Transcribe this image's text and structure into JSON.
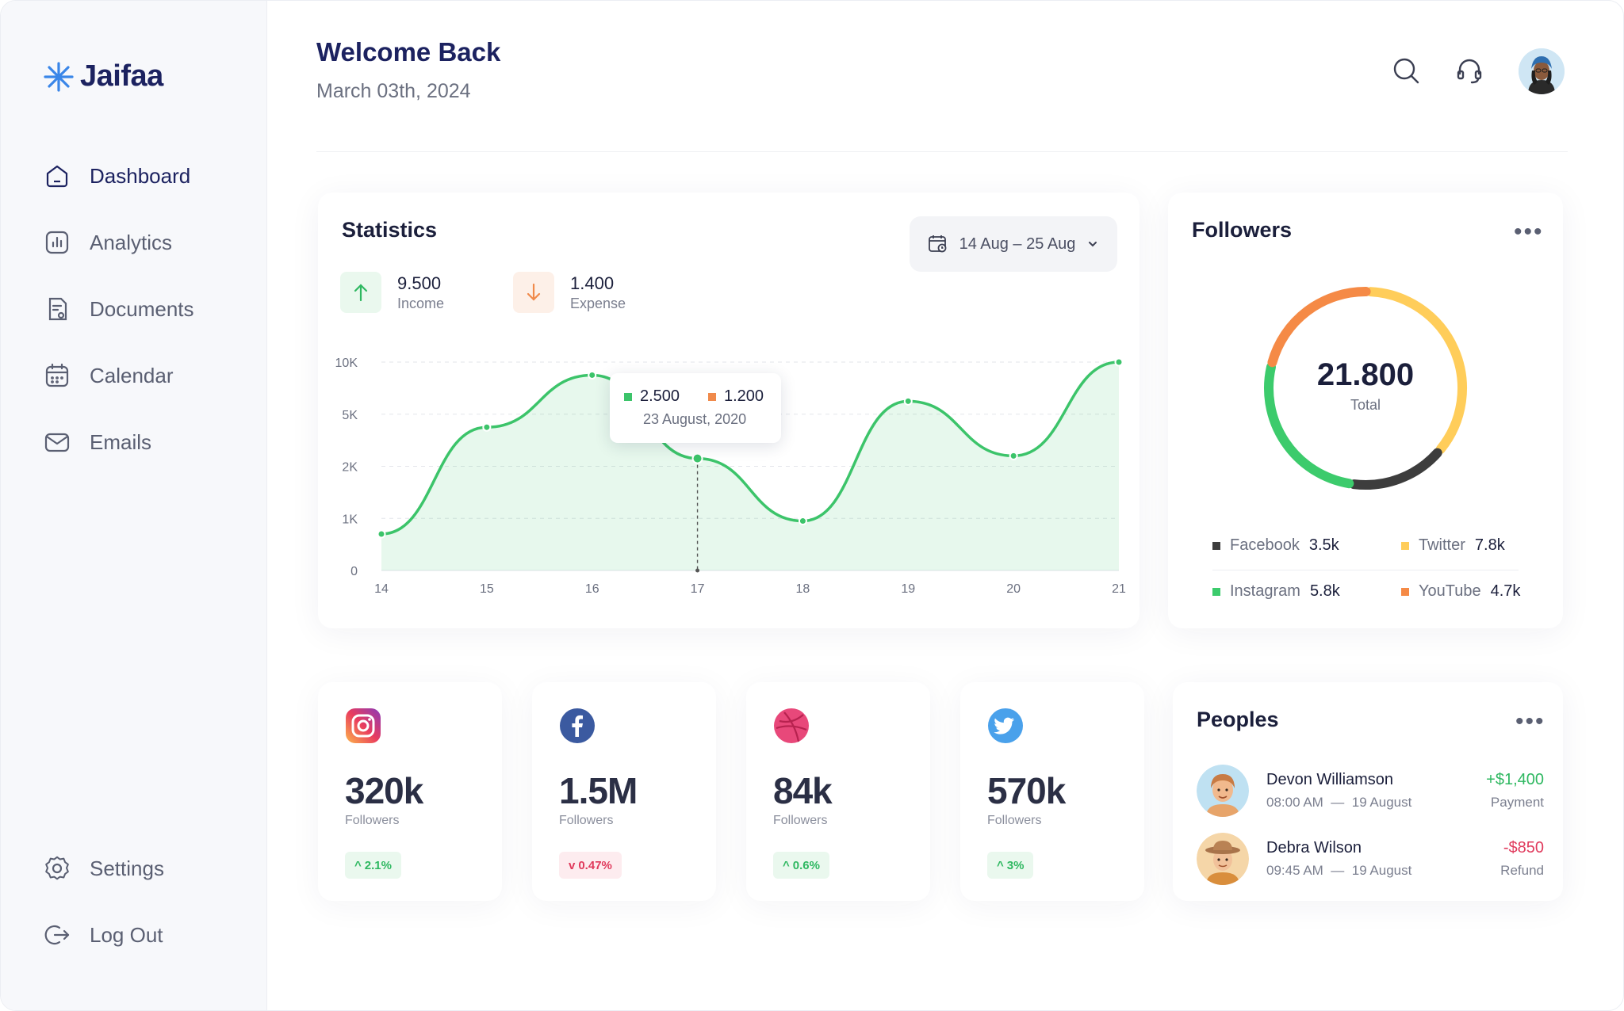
{
  "brand": {
    "name": "Jaifaa",
    "color": "#1c2260",
    "logo_icon": "asterisk-snowflake-icon"
  },
  "sidebar": {
    "items": [
      {
        "label": "Dashboard",
        "icon": "home-icon",
        "active": true
      },
      {
        "label": "Analytics",
        "icon": "bar-chart-icon"
      },
      {
        "label": "Documents",
        "icon": "document-icon"
      },
      {
        "label": "Calendar",
        "icon": "calendar-icon"
      },
      {
        "label": "Emails",
        "icon": "mail-icon"
      }
    ],
    "bottom": [
      {
        "label": "Settings",
        "icon": "gear-icon"
      },
      {
        "label": "Log Out",
        "icon": "logout-icon"
      }
    ]
  },
  "header": {
    "title": "Welcome Back",
    "date": "March 03th, 2024",
    "icons": [
      "search-icon",
      "headset-icon",
      "avatar"
    ]
  },
  "statistics": {
    "title": "Statistics",
    "date_range": "14 Aug – 25 Aug",
    "income": {
      "value": "9.500",
      "label": "Income",
      "color": "#2fb861"
    },
    "expense": {
      "value": "1.400",
      "label": "Expense",
      "color": "#f08a4b"
    },
    "tooltip": {
      "income": "2.500",
      "expense": "1.200",
      "date": "23 August, 2020"
    }
  },
  "chart_data": {
    "type": "area",
    "x": [
      "14",
      "15",
      "16",
      "17",
      "18",
      "19",
      "20",
      "21"
    ],
    "y_ticks": [
      "0",
      "1K",
      "2K",
      "5K",
      "10K"
    ],
    "series": [
      {
        "name": "Income",
        "values_level": [
          0.7,
          2.75,
          3.75,
          2.15,
          0.95,
          3.25,
          2.2,
          4.0
        ],
        "color": "#3cc46a"
      }
    ],
    "highlight_x": "17",
    "ylim_level": [
      0,
      4
    ],
    "grid": true
  },
  "followers": {
    "title": "Followers",
    "total": "21.800",
    "total_label": "Total",
    "segments": [
      {
        "name": "Facebook",
        "value": "3.5k",
        "num": 3.5,
        "color": "#3d3d3d"
      },
      {
        "name": "Twitter",
        "value": "7.8k",
        "num": 7.8,
        "color": "#ffcd5a"
      },
      {
        "name": "Instagram",
        "value": "5.8k",
        "num": 5.8,
        "color": "#3ccb6c"
      },
      {
        "name": "YouTube",
        "value": "4.7k",
        "num": 4.7,
        "color": "#f58a46"
      }
    ]
  },
  "social": [
    {
      "icon": "instagram-icon",
      "value": "320k",
      "label": "Followers",
      "change": "2.1%",
      "trend": "up"
    },
    {
      "icon": "facebook-icon",
      "value": "1.5M",
      "label": "Followers",
      "change": "0.47%",
      "trend": "down"
    },
    {
      "icon": "dribbble-icon",
      "value": "84k",
      "label": "Followers",
      "change": "0.6%",
      "trend": "up"
    },
    {
      "icon": "twitter-icon",
      "value": "570k",
      "label": "Followers",
      "change": "3%",
      "trend": "up"
    }
  ],
  "peoples": {
    "title": "Peoples",
    "items": [
      {
        "name": "Devon Williamson",
        "time": "08:00 AM",
        "date": "19 August",
        "amount": "+$1,400",
        "type": "Payment",
        "amount_color": "#2fb861"
      },
      {
        "name": "Debra Wilson",
        "time": "09:45 AM",
        "date": "19 August",
        "amount": "-$850",
        "type": "Refund",
        "amount_color": "#e03a5c"
      }
    ]
  },
  "separator": "—"
}
